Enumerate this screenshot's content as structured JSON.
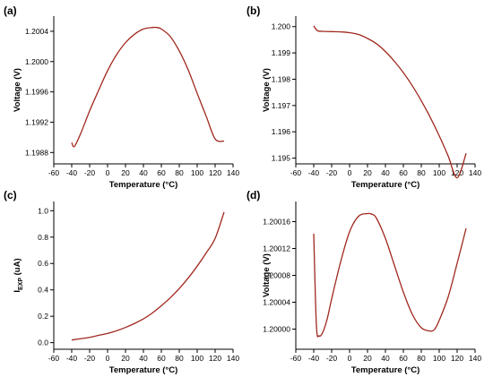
{
  "chart_data": [
    {
      "panel": "(a)",
      "type": "line",
      "xlabel": "Temperature (°C)",
      "ylabel": "Voltage (V)",
      "xlim": [
        -60,
        140
      ],
      "ylim": [
        1.19865,
        1.2006
      ],
      "xticks": [
        "-60",
        "-40",
        "-20",
        "0",
        "20",
        "40",
        "60",
        "80",
        "100",
        "120",
        "140"
      ],
      "yticks": [
        "1.1988",
        "1.1992",
        "1.1996",
        "1.2000",
        "1.2004"
      ],
      "ytick_values": [
        1.1988,
        1.1992,
        1.1996,
        1.2,
        1.2004
      ],
      "grid": false,
      "series": [
        {
          "color": "#a0281e",
          "x": [
            -40,
            -37,
            -30,
            -20,
            -10,
            0,
            10,
            20,
            30,
            40,
            50,
            55,
            60,
            70,
            80,
            90,
            100,
            110,
            120,
            130
          ],
          "y": [
            1.19893,
            1.19888,
            1.19905,
            1.19935,
            1.19962,
            1.19988,
            1.20009,
            1.20025,
            1.20036,
            1.20043,
            1.20045,
            1.20045,
            1.20043,
            1.20033,
            1.20014,
            1.19989,
            1.19958,
            1.19928,
            1.19898,
            1.19895
          ]
        }
      ]
    },
    {
      "panel": "(b)",
      "type": "line",
      "xlabel": "Temperature (°C)",
      "ylabel": "Voltage (V)",
      "xlim": [
        -60,
        140
      ],
      "ylim": [
        1.19478,
        1.2004
      ],
      "xticks": [
        "-60",
        "-40",
        "-20",
        "0",
        "20",
        "40",
        "60",
        "80",
        "100",
        "120",
        "140"
      ],
      "yticks": [
        "1.195",
        "1.196",
        "1.197",
        "1.198",
        "1.199",
        "1.200"
      ],
      "ytick_values": [
        1.195,
        1.196,
        1.197,
        1.198,
        1.199,
        1.2
      ],
      "grid": false,
      "series": [
        {
          "color": "#a0281e",
          "x": [
            -40,
            -36,
            -30,
            -20,
            -10,
            0,
            10,
            20,
            30,
            40,
            50,
            60,
            70,
            80,
            90,
            100,
            110,
            120,
            130
          ],
          "y": [
            1.20003,
            1.19985,
            1.19982,
            1.19981,
            1.1998,
            1.19977,
            1.1997,
            1.19955,
            1.19935,
            1.19905,
            1.19868,
            1.19825,
            1.19775,
            1.19718,
            1.19655,
            1.19585,
            1.19508,
            1.19425,
            1.19518
          ]
        }
      ]
    },
    {
      "panel": "(c)",
      "type": "line",
      "xlabel": "Temperature (°C)",
      "ylabel_main": "I",
      "ylabel_sub": "EXP",
      "ylabel_unit": " (uA)",
      "xlim": [
        -60,
        140
      ],
      "ylim": [
        -0.05,
        1.07
      ],
      "xticks": [
        "-60",
        "-40",
        "-20",
        "0",
        "20",
        "40",
        "60",
        "80",
        "100",
        "120",
        "140"
      ],
      "yticks": [
        "0.0",
        "0.2",
        "0.4",
        "0.6",
        "0.8",
        "1.0"
      ],
      "ytick_values": [
        0,
        0.2,
        0.4,
        0.6,
        0.8,
        1.0
      ],
      "grid": false,
      "series": [
        {
          "color": "#a0281e",
          "x": [
            -40,
            -30,
            -20,
            -10,
            0,
            10,
            20,
            30,
            40,
            50,
            60,
            70,
            80,
            90,
            100,
            110,
            120,
            130
          ],
          "y": [
            0.02,
            0.03,
            0.04,
            0.055,
            0.07,
            0.09,
            0.115,
            0.145,
            0.18,
            0.225,
            0.28,
            0.34,
            0.41,
            0.49,
            0.58,
            0.68,
            0.79,
            0.99
          ]
        }
      ]
    },
    {
      "panel": "(d)",
      "type": "line",
      "xlabel": "Temperature (°C)",
      "ylabel": "Voltage (V)",
      "xlim": [
        -60,
        140
      ],
      "ylim": [
        1.19997,
        1.20019
      ],
      "xticks": [
        "-60",
        "-40",
        "-20",
        "0",
        "20",
        "40",
        "60",
        "80",
        "100",
        "120",
        "140"
      ],
      "yticks": [
        "1.20000",
        "1.20004",
        "1.20008",
        "1.20012",
        "1.20016"
      ],
      "ytick_values": [
        1.2,
        1.20004,
        1.20008,
        1.20012,
        1.20016
      ],
      "grid": false,
      "series": [
        {
          "color": "#a0281e",
          "x": [
            -40,
            -37,
            -34,
            -30,
            -25,
            -20,
            -10,
            0,
            10,
            20,
            25,
            30,
            40,
            50,
            60,
            70,
            80,
            90,
            95,
            100,
            110,
            120,
            130
          ],
          "y": [
            1.200142,
            1.200005,
            1.19999,
            1.199995,
            1.200015,
            1.200045,
            1.2001,
            1.200145,
            1.200168,
            1.200172,
            1.200171,
            1.200165,
            1.200135,
            1.200095,
            1.200055,
            1.200022,
            1.200002,
            1.199997,
            1.2,
            1.200013,
            1.200048,
            1.200098,
            1.20015
          ]
        }
      ]
    }
  ]
}
